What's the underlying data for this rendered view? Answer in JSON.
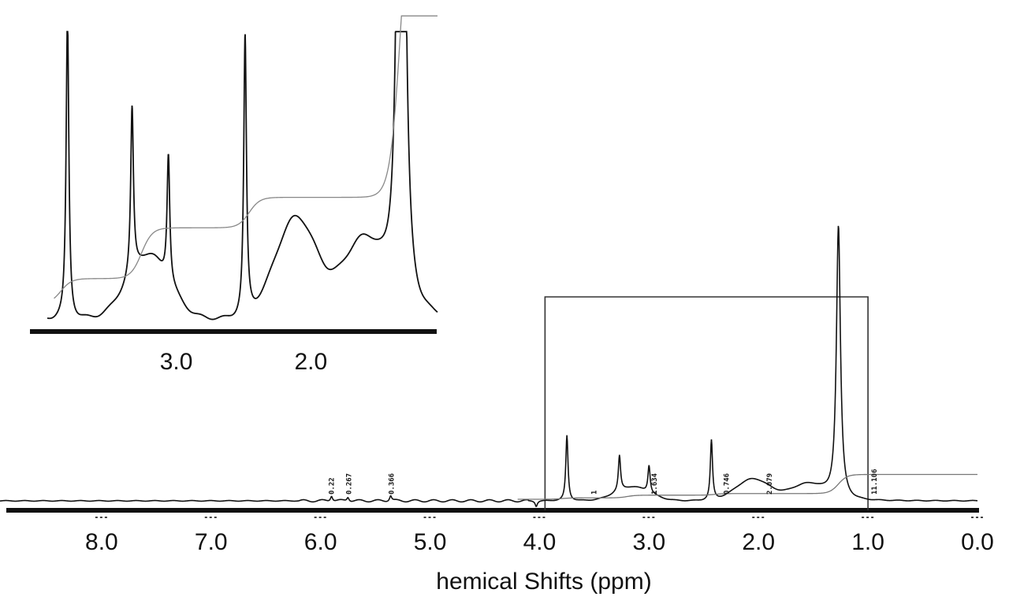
{
  "chart_data": {
    "type": "line",
    "xlabel": "hemical Shifts (ppm)",
    "ylabel": "",
    "title": "",
    "xlim": [
      9.0,
      0.0
    ],
    "x_reversed": true,
    "xticks": [
      {
        "value": 8.0,
        "label": "8.0"
      },
      {
        "value": 7.0,
        "label": "7.0"
      },
      {
        "value": 6.0,
        "label": "6.0"
      },
      {
        "value": 5.0,
        "label": "5.0"
      },
      {
        "value": 4.0,
        "label": "4.0"
      },
      {
        "value": 3.0,
        "label": "3.0"
      },
      {
        "value": 2.0,
        "label": "2.0"
      },
      {
        "value": 1.0,
        "label": "1.0"
      },
      {
        "value": 0.0,
        "label": "0.0"
      }
    ],
    "grid": false,
    "series": [
      {
        "role": "spectrum",
        "peaks": [
          {
            "ppm": 5.9,
            "height": 0.02
          },
          {
            "ppm": 5.75,
            "height": 0.015
          },
          {
            "ppm": 5.36,
            "height": 0.02
          },
          {
            "ppm": 4.03,
            "height": -0.02
          },
          {
            "ppm": 3.75,
            "height": 0.24
          },
          {
            "ppm": 3.27,
            "height": 0.13
          },
          {
            "ppm": 3.0,
            "height": 0.1
          },
          {
            "ppm": 2.43,
            "height": 0.22
          },
          {
            "ppm": 1.27,
            "height": 1.0
          }
        ],
        "humps": [
          {
            "ppm": 3.15,
            "height": 0.05
          },
          {
            "ppm": 2.05,
            "height": 0.08
          },
          {
            "ppm": 1.55,
            "height": 0.06
          }
        ]
      },
      {
        "role": "integral",
        "steps": [
          {
            "ppm": 3.8,
            "rise": 0.005
          },
          {
            "ppm": 3.2,
            "rise": 0.01
          },
          {
            "ppm": 2.4,
            "rise": 0.006
          },
          {
            "ppm": 1.27,
            "rise": 0.07
          }
        ]
      }
    ],
    "integration_labels": [
      {
        "ppm": 5.88,
        "text": "0.22"
      },
      {
        "ppm": 5.72,
        "text": "0.267"
      },
      {
        "ppm": 5.33,
        "text": "0.366"
      },
      {
        "ppm": 3.48,
        "text": "1"
      },
      {
        "ppm": 2.93,
        "text": "1.634"
      },
      {
        "ppm": 2.27,
        "text": "0.746"
      },
      {
        "ppm": 1.88,
        "text": "2.079"
      },
      {
        "ppm": 0.92,
        "text": "11.106"
      }
    ],
    "zoom_region": {
      "from": 3.95,
      "to": 1.0
    },
    "inset": {
      "xlim": [
        3.9,
        1.0
      ],
      "xticks": [
        {
          "value": 3.0,
          "label": "3.0"
        },
        {
          "value": 2.0,
          "label": "2.0"
        }
      ]
    }
  }
}
